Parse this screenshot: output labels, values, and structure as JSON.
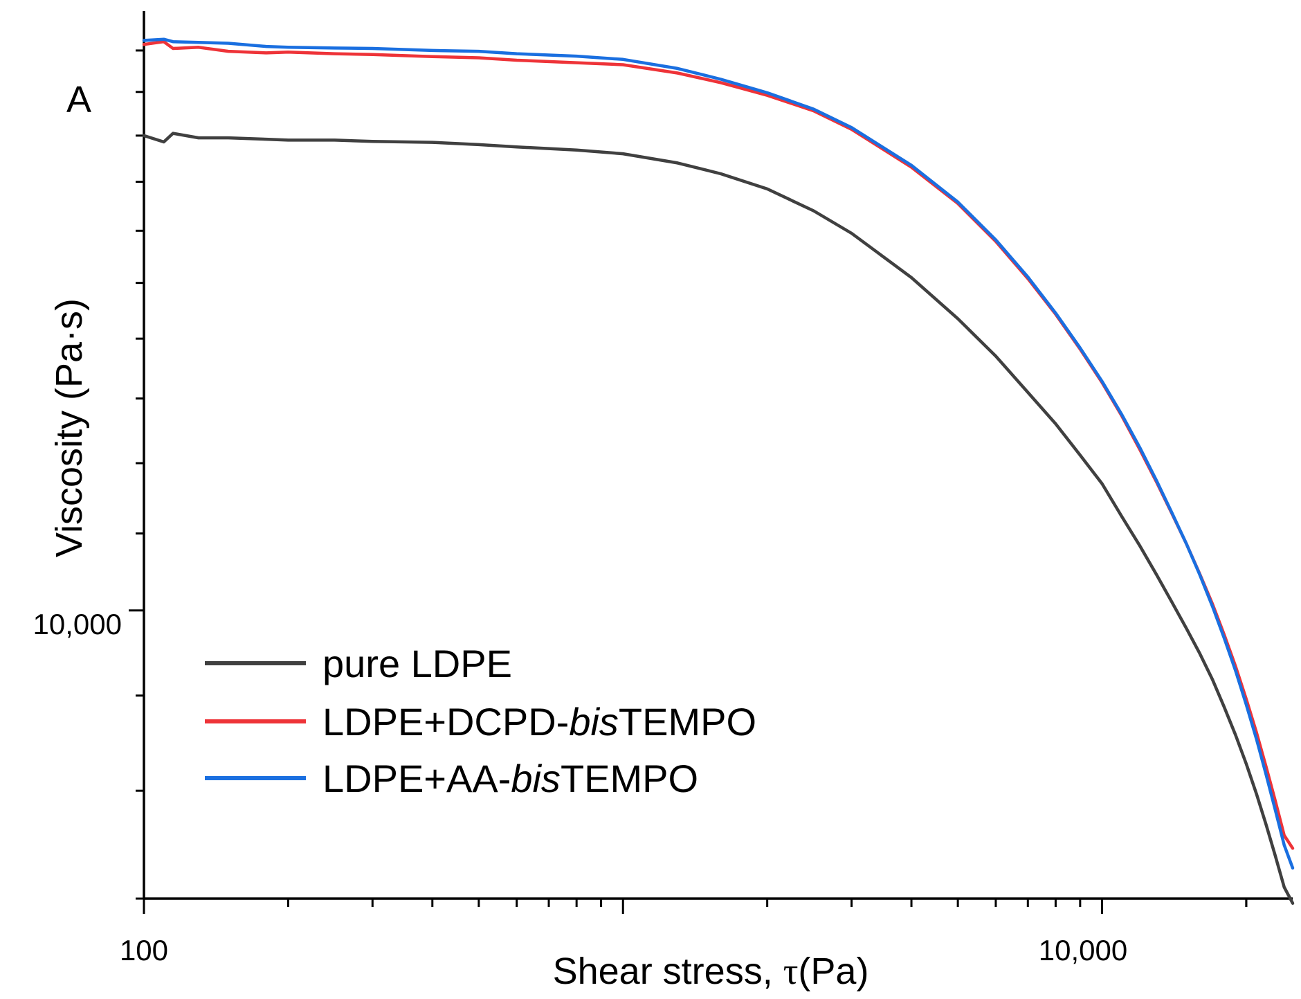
{
  "chart_data": {
    "type": "line",
    "panel_label": "A",
    "xlabel_prefix": "Shear stress, ",
    "xlabel_symbol": "τ",
    "xlabel_unit": "(Pa)",
    "ylabel": "Viscosity (Pa·s)",
    "x_scale": "log",
    "y_scale": "log",
    "xlim": [
      100,
      25000
    ],
    "ylim": [
      7000,
      21000
    ],
    "x_tick_labels": [
      {
        "value": 100,
        "label": "100"
      },
      {
        "value": 10000,
        "label": "10,000"
      }
    ],
    "y_tick_labels": [
      {
        "value": 10000,
        "label": "10,000"
      }
    ],
    "legend_position": "lower-left",
    "series": [
      {
        "name": "pure LDPE",
        "label_parts": [
          {
            "text": "pure LDPE",
            "italic": false
          }
        ],
        "color": "#404040",
        "x": [
          100,
          110,
          115,
          130,
          150,
          180,
          200,
          250,
          300,
          400,
          500,
          600,
          800,
          1000,
          1300,
          1600,
          2000,
          2500,
          3000,
          4000,
          5000,
          6000,
          7000,
          8000,
          9000,
          10000,
          11000,
          12000,
          13000,
          14000,
          15000,
          16000,
          17000,
          18000,
          19000,
          20000,
          21000,
          22000,
          23000,
          24000,
          25000
        ],
        "y": [
          18000,
          17860,
          18050,
          17950,
          17950,
          17920,
          17900,
          17900,
          17870,
          17850,
          17800,
          17750,
          17680,
          17600,
          17400,
          17170,
          16850,
          16400,
          15950,
          15100,
          14350,
          13700,
          13100,
          12600,
          12120,
          11700,
          11230,
          10830,
          10450,
          10100,
          9780,
          9480,
          9180,
          8870,
          8570,
          8270,
          7970,
          7670,
          7380,
          7100,
          6960
        ]
      },
      {
        "name": "LDPE+DCPD-bisTEMPO",
        "label_parts": [
          {
            "text": "LDPE+DCPD-",
            "italic": false
          },
          {
            "text": "bis",
            "italic": true
          },
          {
            "text": "TEMPO",
            "italic": false
          }
        ],
        "color": "#ee3338",
        "x": [
          100,
          110,
          115,
          130,
          150,
          180,
          200,
          250,
          300,
          400,
          500,
          600,
          800,
          1000,
          1300,
          1600,
          2000,
          2500,
          3000,
          4000,
          5000,
          6000,
          7000,
          8000,
          9000,
          10000,
          11000,
          12000,
          13000,
          14000,
          15000,
          16000,
          17000,
          18000,
          19000,
          20000,
          21000,
          22000,
          23000,
          24000,
          25000
        ],
        "y": [
          20150,
          20220,
          20050,
          20080,
          19980,
          19940,
          19960,
          19920,
          19900,
          19850,
          19820,
          19760,
          19700,
          19650,
          19450,
          19220,
          18920,
          18560,
          18140,
          17310,
          16550,
          15790,
          15080,
          14430,
          13820,
          13260,
          12720,
          12200,
          11720,
          11270,
          10860,
          10460,
          10080,
          9700,
          9330,
          8960,
          8600,
          8240,
          7900,
          7570,
          7450
        ]
      },
      {
        "name": "LDPE+AA-bisTEMPO",
        "label_parts": [
          {
            "text": "LDPE+AA-",
            "italic": false
          },
          {
            "text": "bis",
            "italic": true
          },
          {
            "text": "TEMPO",
            "italic": false
          }
        ],
        "color": "#1a6fe0",
        "x": [
          100,
          110,
          115,
          130,
          150,
          180,
          200,
          250,
          300,
          400,
          500,
          600,
          800,
          1000,
          1300,
          1600,
          2000,
          2500,
          3000,
          4000,
          5000,
          6000,
          7000,
          8000,
          9000,
          10000,
          11000,
          12000,
          13000,
          14000,
          15000,
          16000,
          17000,
          18000,
          19000,
          20000,
          21000,
          22000,
          23000,
          24000,
          25000
        ],
        "y": [
          20250,
          20280,
          20220,
          20200,
          20180,
          20100,
          20080,
          20060,
          20050,
          20000,
          19980,
          19920,
          19860,
          19780,
          19560,
          19300,
          18980,
          18600,
          18180,
          17350,
          16580,
          15820,
          15110,
          14450,
          13840,
          13280,
          12740,
          12230,
          11740,
          11280,
          10860,
          10450,
          10050,
          9660,
          9280,
          8900,
          8530,
          8160,
          7810,
          7480,
          7270
        ]
      }
    ]
  }
}
